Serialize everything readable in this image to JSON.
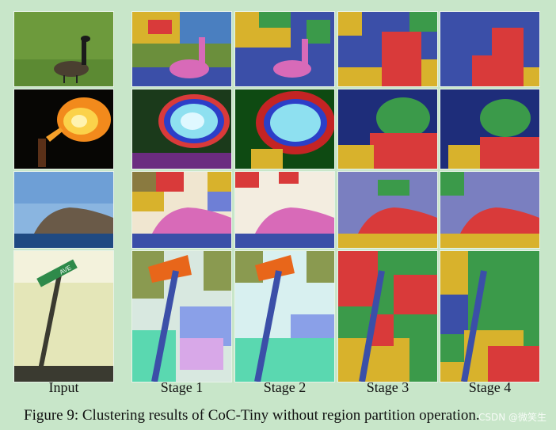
{
  "figure": {
    "column_labels": [
      "Input",
      "Stage 1",
      "Stage 2",
      "Stage 3",
      "Stage 4"
    ],
    "caption": "Figure 9: Clustering results of CoC-Tiny without region partition operation.",
    "watermark": "CSDN @微笑生",
    "rows": [
      {
        "subject": "goose-on-grass",
        "sign_text": ""
      },
      {
        "subject": "fire-breather",
        "sign_text": ""
      },
      {
        "subject": "coastal-cliff",
        "sign_text": ""
      },
      {
        "subject": "street-sign",
        "sign_text": "AVE"
      }
    ]
  },
  "colors": {
    "background": "#c8e6c9",
    "cluster_blue": "#3b4fa8",
    "cluster_red": "#d93a3a",
    "cluster_yellow": "#d8b22c",
    "cluster_green": "#3b9a4a",
    "cluster_pink": "#d86ab8",
    "cluster_cyan": "#8ee0f0"
  }
}
